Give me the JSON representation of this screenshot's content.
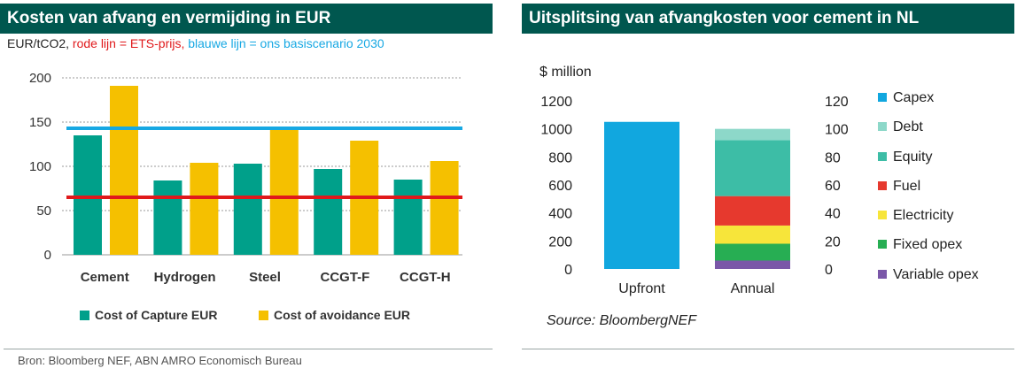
{
  "left": {
    "title": "Kosten van afvang en vermijding in EUR",
    "subtitle_unit": "EUR/tCO2,",
    "subtitle_red": "rode lijn = ETS-prijs,",
    "subtitle_blue": "blauwe lijn = ons basiscenario 2030",
    "source": "Bron: Bloomberg NEF, ABN AMRO Economisch Bureau",
    "legend": [
      {
        "label": "Cost of Capture EUR",
        "color": "#00a08a"
      },
      {
        "label": "Cost of avoidance EUR",
        "color": "#f5c000"
      }
    ]
  },
  "right": {
    "title": "Uitsplitsing van afvangkosten voor cement in NL",
    "unit_label": "$ million",
    "source": "Source: BloombergNEF",
    "legend": [
      {
        "label": "Capex",
        "color": "#11a7df"
      },
      {
        "label": "Debt",
        "color": "#8dd8c9"
      },
      {
        "label": "Equity",
        "color": "#3dbda6"
      },
      {
        "label": "Fuel",
        "color": "#e6392e"
      },
      {
        "label": "Electricity",
        "color": "#f7e53a"
      },
      {
        "label": "Fixed opex",
        "color": "#27ae53"
      },
      {
        "label": "Variable opex",
        "color": "#7a57a8"
      }
    ]
  },
  "chart_data": [
    {
      "type": "bar",
      "categories": [
        "Cement",
        "Hydrogen",
        "Steel",
        "CCGT-F",
        "CCGT-H"
      ],
      "series": [
        {
          "name": "Cost of Capture EUR",
          "color": "#00a08a",
          "values": [
            135,
            84,
            103,
            97,
            85
          ]
        },
        {
          "name": "Cost of avoidance EUR",
          "color": "#f5c000",
          "values": [
            191,
            104,
            141,
            129,
            106
          ]
        }
      ],
      "ylim": [
        0,
        200
      ],
      "yticks": [
        0,
        50,
        100,
        150,
        200
      ],
      "reference_lines": [
        {
          "value": 65,
          "color": "#e0191b"
        },
        {
          "value": 143,
          "color": "#17a8e3"
        }
      ],
      "grid": true,
      "legend_position": "bottom"
    },
    {
      "type": "bar",
      "categories": [
        "Upfront",
        "Annual"
      ],
      "stacked": true,
      "left_axis": {
        "ylim": [
          0,
          1200
        ],
        "ticks": [
          0,
          200,
          400,
          600,
          800,
          1000,
          1200
        ]
      },
      "right_axis": {
        "ylim": [
          0,
          120
        ],
        "ticks": [
          0,
          20,
          40,
          60,
          80,
          100,
          120
        ]
      },
      "upfront": {
        "name": "Capex",
        "value": 1050
      },
      "annual": [
        {
          "name": "Variable opex",
          "value": 6
        },
        {
          "name": "Fixed opex",
          "value": 12
        },
        {
          "name": "Electricity",
          "value": 13
        },
        {
          "name": "Fuel",
          "value": 21
        },
        {
          "name": "Equity",
          "value": 40
        },
        {
          "name": "Debt",
          "value": 8
        }
      ],
      "legend_position": "right"
    }
  ]
}
